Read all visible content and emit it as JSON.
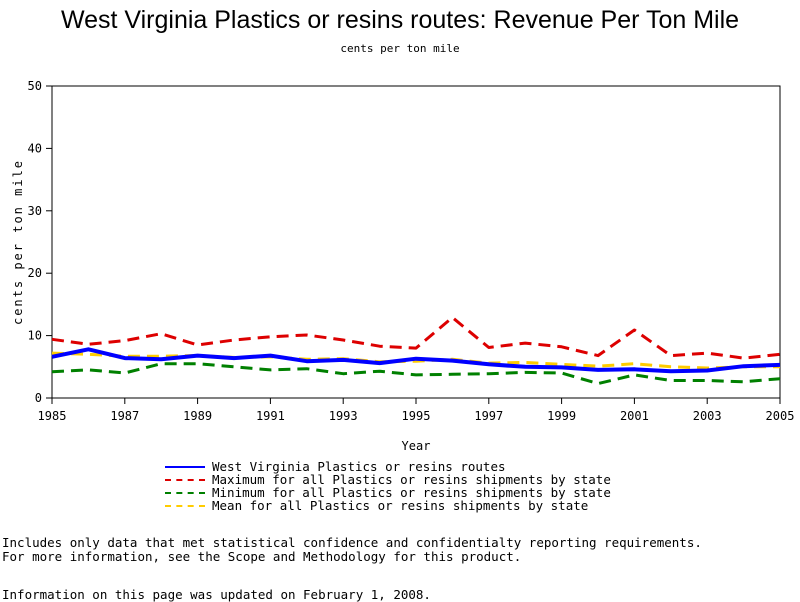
{
  "chart_data": {
    "type": "line",
    "title": "West Virginia Plastics or resins routes: Revenue Per Ton Mile",
    "subtitle": "cents per ton mile",
    "xlabel": "Year",
    "ylabel": "cents per ton mile",
    "xlim": [
      1985,
      2005
    ],
    "ylim": [
      0,
      50
    ],
    "x_ticks": [
      "1985",
      "1987",
      "1989",
      "1991",
      "1993",
      "1995",
      "1997",
      "1999",
      "2001",
      "2003",
      "2005"
    ],
    "y_ticks": [
      "0",
      "10",
      "20",
      "30",
      "40",
      "50"
    ],
    "grid": false,
    "legend_position": "bottom",
    "x": [
      1985,
      1986,
      1987,
      1988,
      1989,
      1990,
      1991,
      1992,
      1993,
      1994,
      1995,
      1996,
      1997,
      1998,
      1999,
      2000,
      2001,
      2002,
      2003,
      2004,
      2005
    ],
    "series": [
      {
        "name": "West Virginia Plastics or resins routes",
        "color": "#0000ff",
        "style": "solid",
        "values": [
          6.6,
          7.8,
          6.4,
          6.2,
          6.8,
          6.4,
          6.8,
          5.9,
          6.1,
          5.6,
          6.3,
          6.0,
          5.4,
          5.0,
          4.9,
          4.5,
          4.6,
          4.3,
          4.4,
          5.1,
          5.3
        ]
      },
      {
        "name": "Maximum for all Plastics or resins shipments by state",
        "color": "#dd0000",
        "style": "dashed",
        "values": [
          9.4,
          8.6,
          9.2,
          10.3,
          8.5,
          9.3,
          9.8,
          10.1,
          9.3,
          8.3,
          8.0,
          12.9,
          8.1,
          8.8,
          8.2,
          6.8,
          10.9,
          6.8,
          7.2,
          6.4,
          7.0
        ]
      },
      {
        "name": "Minimum for all Plastics or resins shipments by state",
        "color": "#008000",
        "style": "dashed",
        "values": [
          4.2,
          4.5,
          4.0,
          5.5,
          5.5,
          5.0,
          4.5,
          4.7,
          3.9,
          4.3,
          3.7,
          3.8,
          3.9,
          4.1,
          4.0,
          2.3,
          3.7,
          2.8,
          2.8,
          2.6,
          3.1
        ]
      },
      {
        "name": "Mean for all Plastics or resins shipments by state",
        "color": "#ffcc00",
        "style": "dashed",
        "values": [
          7.2,
          7.0,
          6.7,
          6.7,
          6.8,
          6.5,
          6.6,
          6.2,
          6.3,
          5.8,
          5.9,
          6.2,
          5.6,
          5.7,
          5.4,
          5.1,
          5.5,
          5.0,
          4.8,
          5.0,
          5.0
        ]
      }
    ]
  },
  "footnotes": {
    "line1": "Includes only data that met statistical confidence and confidentialty reporting requirements.",
    "line2": "For more information, see the Scope and Methodology for this product.",
    "updated": "Information on this page was updated on February 1, 2008."
  }
}
